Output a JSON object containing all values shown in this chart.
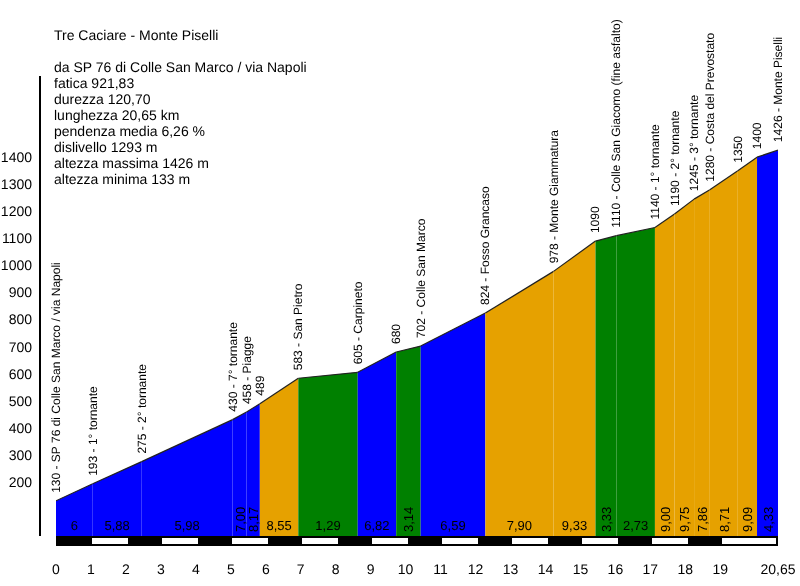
{
  "chart_data": {
    "type": "area",
    "title": "Tre Caciare -  Monte Piselli",
    "subtitle": "da SP 76 di Colle San Marco / via Napoli",
    "annotations": [
      "fatica 921,83",
      "durezza 120,70",
      "lunghezza 20,65 km",
      "pendenza media 6,26 %",
      "dislivello 1293 m",
      "altezza massima 1426 m",
      "altezza minima 133 m",
      {
        "text": "130 - SP 76 di Colle San Marco / via Napoli",
        "x": 0,
        "y": 130
      },
      {
        "text": "193 - 1° tornante",
        "x": 1.05,
        "y": 193
      },
      {
        "text": "275 - 2° tornante",
        "x": 2.45,
        "y": 275
      },
      {
        "text": "430 - 7° tornante",
        "x": 5.05,
        "y": 430
      },
      {
        "text": "458 - Piagge",
        "x": 5.45,
        "y": 458
      },
      {
        "text": "489",
        "x": 5.83,
        "y": 489
      },
      {
        "text": "583 - San Pietro",
        "x": 6.93,
        "y": 583
      },
      {
        "text": "605 - Carpineto",
        "x": 8.63,
        "y": 605
      },
      {
        "text": "680",
        "x": 9.73,
        "y": 680
      },
      {
        "text": "702 - Colle San Marco",
        "x": 10.43,
        "y": 702
      },
      {
        "text": "824 - Fosso Grancaso",
        "x": 12.28,
        "y": 824
      },
      {
        "text": "978 - Monte Giammatura",
        "x": 14.23,
        "y": 978
      },
      {
        "text": "1090",
        "x": 15.43,
        "y": 1090
      },
      {
        "text": "1110 - Colle San Giacomo (fine asfalto)",
        "x": 16.03,
        "y": 1110
      },
      {
        "text": "1140 - 1° tornante",
        "x": 17.13,
        "y": 1140
      },
      {
        "text": "1190 - 2° tornante",
        "x": 17.69,
        "y": 1190
      },
      {
        "text": "1245 - 3° tornante",
        "x": 18.25,
        "y": 1245
      },
      {
        "text": "1280 - Costa del Prevostato",
        "x": 18.7,
        "y": 1280
      },
      {
        "text": "1350",
        "x": 19.5,
        "y": 1350
      },
      {
        "text": "1400",
        "x": 20.05,
        "y": 1400
      },
      {
        "text": "1426 - Monte Piselli",
        "x": 20.65,
        "y": 1426
      },
      {
        "text": "6",
        "x": 0.525,
        "y": 0
      },
      {
        "text": "5,88",
        "x": 1.75,
        "y": 0
      },
      {
        "text": "5,98",
        "x": 3.75,
        "y": 0
      },
      {
        "text": "7,00",
        "x": 5.25,
        "y": 0
      },
      {
        "text": "8,17",
        "x": 5.64,
        "y": 0
      },
      {
        "text": "8,55",
        "x": 6.38,
        "y": 0
      },
      {
        "text": "1,29",
        "x": 7.78,
        "y": 0
      },
      {
        "text": "6,82",
        "x": 9.18,
        "y": 0
      },
      {
        "text": "3,14",
        "x": 10.08,
        "y": 0
      },
      {
        "text": "6,59",
        "x": 11.355,
        "y": 0
      },
      {
        "text": "7,90",
        "x": 13.255,
        "y": 0
      },
      {
        "text": "9,33",
        "x": 14.83,
        "y": 0
      },
      {
        "text": "3,33",
        "x": 15.73,
        "y": 0
      },
      {
        "text": "2,73",
        "x": 16.58,
        "y": 0
      },
      {
        "text": "9,00",
        "x": 17.41,
        "y": 0
      },
      {
        "text": "9,75",
        "x": 17.97,
        "y": 0
      },
      {
        "text": "7,86",
        "x": 18.475,
        "y": 0
      },
      {
        "text": "8,71",
        "x": 19.1,
        "y": 0
      },
      {
        "text": "9,09",
        "x": 19.775,
        "y": 0
      },
      {
        "text": "4,33",
        "x": 20.35,
        "y": 0
      }
    ],
    "series": [
      {
        "color": "#0000ff",
        "x": [
          0,
          1.05
        ],
        "values": [
          130,
          193
        ]
      },
      {
        "color": "#0000ff",
        "x": [
          1.05,
          2.45
        ],
        "values": [
          193,
          275
        ]
      },
      {
        "color": "#0000ff",
        "x": [
          2.45,
          5.05
        ],
        "values": [
          275,
          430
        ]
      },
      {
        "color": "#0000ff",
        "x": [
          5.05,
          5.45
        ],
        "values": [
          430,
          458
        ]
      },
      {
        "color": "#0000ff",
        "x": [
          5.45,
          5.83
        ],
        "values": [
          458,
          489
        ]
      },
      {
        "color": "#e6a100",
        "x": [
          5.83,
          6.93
        ],
        "values": [
          489,
          583
        ]
      },
      {
        "color": "#008000",
        "x": [
          6.93,
          8.63
        ],
        "values": [
          583,
          605
        ]
      },
      {
        "color": "#0000ff",
        "x": [
          8.63,
          9.73
        ],
        "values": [
          605,
          680
        ]
      },
      {
        "color": "#008000",
        "x": [
          9.73,
          10.43
        ],
        "values": [
          680,
          702
        ]
      },
      {
        "color": "#0000ff",
        "x": [
          10.43,
          12.28
        ],
        "values": [
          702,
          824
        ]
      },
      {
        "color": "#e6a100",
        "x": [
          12.28,
          14.23
        ],
        "values": [
          824,
          978
        ]
      },
      {
        "color": "#e6a100",
        "x": [
          14.23,
          15.43
        ],
        "values": [
          978,
          1090
        ]
      },
      {
        "color": "#008000",
        "x": [
          15.43,
          16.03
        ],
        "values": [
          1090,
          1110
        ]
      },
      {
        "color": "#008000",
        "x": [
          16.03,
          17.13
        ],
        "values": [
          1110,
          1140
        ]
      },
      {
        "color": "#e6a100",
        "x": [
          17.13,
          17.69
        ],
        "values": [
          1140,
          1190
        ]
      },
      {
        "color": "#e6a100",
        "x": [
          17.69,
          18.25
        ],
        "values": [
          1190,
          1245
        ]
      },
      {
        "color": "#e6a100",
        "x": [
          18.25,
          18.7
        ],
        "values": [
          1245,
          1280
        ]
      },
      {
        "color": "#e6a100",
        "x": [
          18.7,
          19.5
        ],
        "values": [
          1280,
          1350
        ]
      },
      {
        "color": "#e6a100",
        "x": [
          19.5,
          20.05
        ],
        "values": [
          1350,
          1400
        ]
      },
      {
        "color": "#0000ff",
        "x": [
          20.05,
          20.65
        ],
        "values": [
          1400,
          1426
        ]
      }
    ],
    "xlim": [
      0,
      20.65
    ],
    "xticks": [
      0,
      1,
      2,
      3,
      4,
      5,
      6,
      7,
      8,
      9,
      10,
      11,
      12,
      13,
      14,
      15,
      16,
      17,
      18,
      19,
      {
        "value": 20.65,
        "label": "20,65"
      }
    ],
    "ylim": [
      0,
      1700
    ],
    "yticks": [
      200,
      300,
      400,
      500,
      600,
      700,
      800,
      900,
      1000,
      1100,
      1200,
      1300,
      1400
    ]
  }
}
